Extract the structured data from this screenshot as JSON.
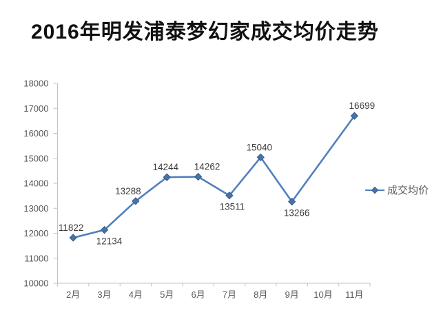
{
  "page": {
    "title": "2016年明发浦泰梦幻家成交均价走势"
  },
  "legend": {
    "label": "成交均价"
  },
  "chart_data": {
    "type": "line",
    "title": "2016年明发浦泰梦幻家成交均价走势",
    "categories": [
      "2月",
      "3月",
      "4月",
      "5月",
      "6月",
      "7月",
      "8月",
      "9月",
      "10月",
      "11月"
    ],
    "series": [
      {
        "name": "成交均价",
        "values": [
          11822,
          12134,
          13288,
          14244,
          14262,
          13511,
          15040,
          13266,
          null,
          16699
        ],
        "color": "#4F81BD",
        "marker": "diamond",
        "marker_fill": "#4a72a5",
        "marker_stroke": "#385d8a"
      }
    ],
    "xlabel": "",
    "ylabel": "",
    "ylim": [
      10000,
      18000
    ],
    "ytick_step": 1000,
    "grid": false,
    "legend_position": "right",
    "data_labels": true,
    "label_positions": [
      "above",
      "below",
      "above",
      "above",
      "above",
      "below",
      "above",
      "below",
      null,
      "above"
    ],
    "label_dx": [
      -3,
      7,
      -11,
      -2,
      13,
      4,
      -2,
      7,
      0,
      11
    ],
    "colors": {
      "axis": "#c3c3c3",
      "tick_label": "#595959",
      "data_label": "#3d3d3d"
    }
  }
}
